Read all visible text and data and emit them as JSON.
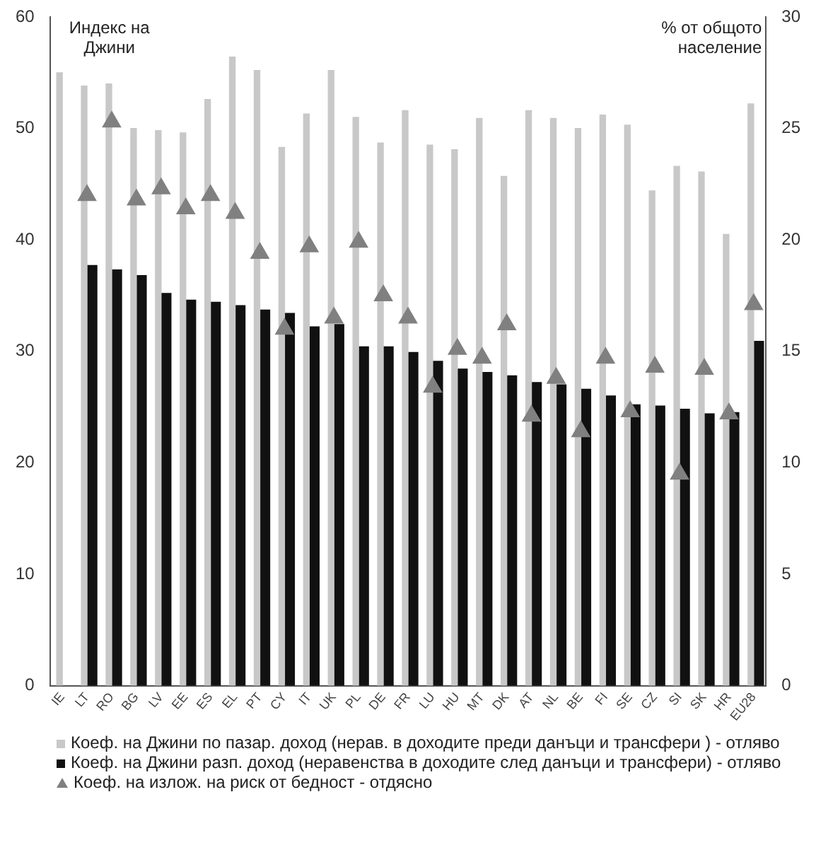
{
  "chart_data": {
    "type": "bar",
    "ylabel": "Индекс на Джини",
    "y2label": "% от общото население",
    "categories": [
      "IE",
      "LT",
      "RO",
      "BG",
      "LV",
      "EE",
      "ES",
      "EL",
      "PT",
      "CY",
      "IT",
      "UK",
      "PL",
      "DE",
      "FR",
      "LU",
      "HU",
      "MT",
      "DK",
      "AT",
      "NL",
      "BE",
      "FI",
      "SE",
      "CZ",
      "SI",
      "SK",
      "HR",
      "EU28"
    ],
    "series": [
      {
        "name": "Коеф. на Джини по пазар. доход (нерав. в доходите преди данъци и трансфери ) - отляво",
        "color": "#c8c8c8",
        "values": [
          55.0,
          53.8,
          54.0,
          50.0,
          49.8,
          49.6,
          52.6,
          56.4,
          55.2,
          48.3,
          51.3,
          55.2,
          51.0,
          48.7,
          51.6,
          48.5,
          48.1,
          50.9,
          45.7,
          51.6,
          50.9,
          50.0,
          51.2,
          50.3,
          44.4,
          46.6,
          46.1,
          40.5,
          52.2
        ]
      },
      {
        "name": "Коеф. на Джини разп. доход (неравенства в доходите след данъци и трансфери) - отляво",
        "color": "#111111",
        "values": [
          null,
          37.7,
          37.3,
          36.8,
          35.2,
          34.6,
          34.4,
          34.1,
          33.7,
          33.4,
          32.2,
          32.4,
          30.4,
          30.4,
          29.9,
          29.1,
          28.4,
          28.1,
          27.8,
          27.2,
          27.0,
          26.6,
          26.0,
          25.2,
          25.1,
          24.8,
          24.4,
          24.5,
          30.9
        ]
      },
      {
        "name": "Коеф. на излож. на риск от бедност - отдясно",
        "color": "#808080",
        "type": "scatter",
        "axis": "y2",
        "marker": "triangle",
        "values": [
          null,
          22.0,
          25.3,
          21.8,
          22.3,
          21.4,
          22.0,
          21.2,
          19.4,
          16.0,
          19.7,
          16.5,
          19.9,
          17.5,
          16.5,
          13.4,
          15.1,
          14.7,
          16.2,
          12.1,
          13.8,
          11.4,
          14.7,
          12.3,
          14.3,
          9.5,
          14.2,
          12.2,
          17.1
        ]
      }
    ],
    "ylim": [
      0,
      60
    ],
    "yticks": [
      0,
      10,
      20,
      30,
      40,
      50,
      60
    ],
    "y2lim": [
      0,
      30
    ],
    "y2ticks": [
      0,
      5,
      10,
      15,
      20,
      25,
      30
    ],
    "grid": false,
    "legend": "bottom"
  }
}
